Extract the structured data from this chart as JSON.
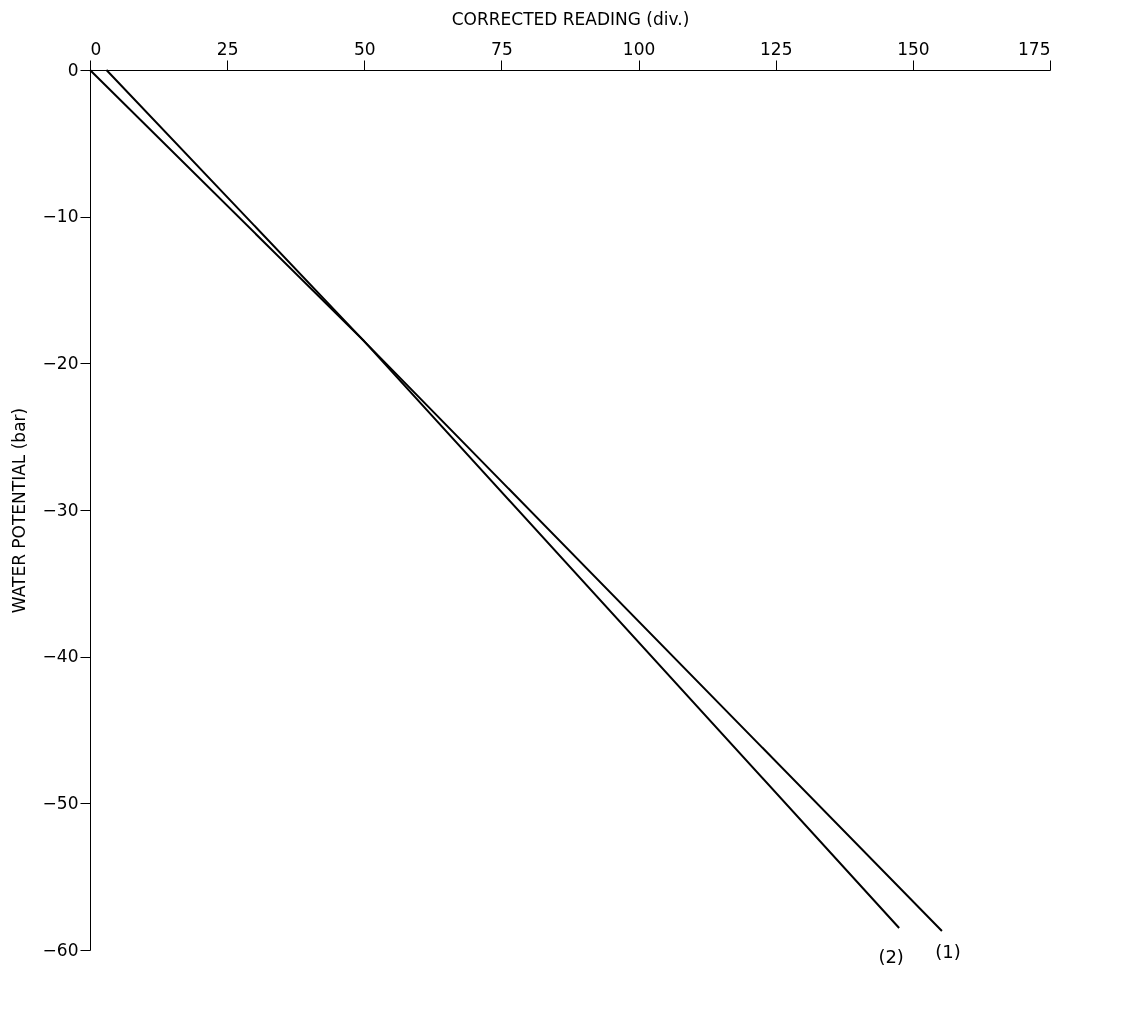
{
  "chart_data": {
    "type": "line",
    "xlabel": "CORRECTED READING (div.)",
    "ylabel": "WATER POTENTIAL  (bar)",
    "series": [
      {
        "name": "(1)",
        "color": "#000000",
        "x": [
          3,
          50,
          155.3
        ],
        "values": [
          0,
          -18.5,
          -58.7
        ]
      },
      {
        "name": "(2)",
        "color": "#000000",
        "x": [
          0,
          50,
          147.5
        ],
        "values": [
          0,
          -18.5,
          -58.5
        ]
      }
    ],
    "xlim": [
      0,
      175
    ],
    "xticks": [
      0,
      25,
      50,
      75,
      100,
      125,
      150,
      175
    ],
    "ylim": [
      -60,
      0
    ],
    "yticks": [
      0,
      -10,
      -20,
      -30,
      -40,
      -50,
      -60
    ],
    "grid": false,
    "legend": false,
    "marker": "none",
    "line_style": "solid"
  }
}
